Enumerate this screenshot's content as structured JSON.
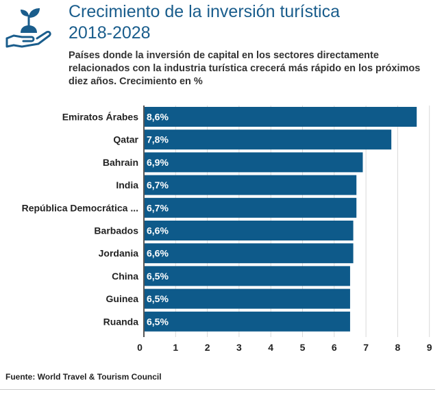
{
  "header": {
    "title_line1": "Crecimiento de la inversión turística",
    "title_line2": "2018-2028",
    "subtitle": "Países donde la inversión de capital en los sectores directamente relacionados con la industria turística crecerá más rápido en los próximos diez años. Crecimiento en %",
    "icon": "plant-in-hand-icon"
  },
  "colors": {
    "title": "#1a5d8c",
    "bar": "#0e5a8a",
    "icon": "#1a5d8c",
    "grid": "#d9d9d9"
  },
  "chart_data": {
    "type": "bar",
    "orientation": "horizontal",
    "categories": [
      "Emiratos Árabes",
      "Qatar",
      "Bahrain",
      "India",
      "República Democrática ...",
      "Barbados",
      "Jordania",
      "China",
      "Guinea",
      "Ruanda"
    ],
    "values": [
      8.6,
      7.8,
      6.9,
      6.7,
      6.7,
      6.6,
      6.6,
      6.5,
      6.5,
      6.5
    ],
    "value_labels": [
      "8,6%",
      "7,8%",
      "6,9%",
      "6,7%",
      "6,7%",
      "6,6%",
      "6,6%",
      "6,5%",
      "6,5%",
      "6,5%"
    ],
    "xticks": [
      "0",
      "1",
      "2",
      "3",
      "4",
      "5",
      "6",
      "7",
      "8",
      "9"
    ],
    "xlim": [
      0,
      9
    ],
    "grid": true
  },
  "footer": {
    "source": "Fuente: World Travel & Tourism Council"
  }
}
